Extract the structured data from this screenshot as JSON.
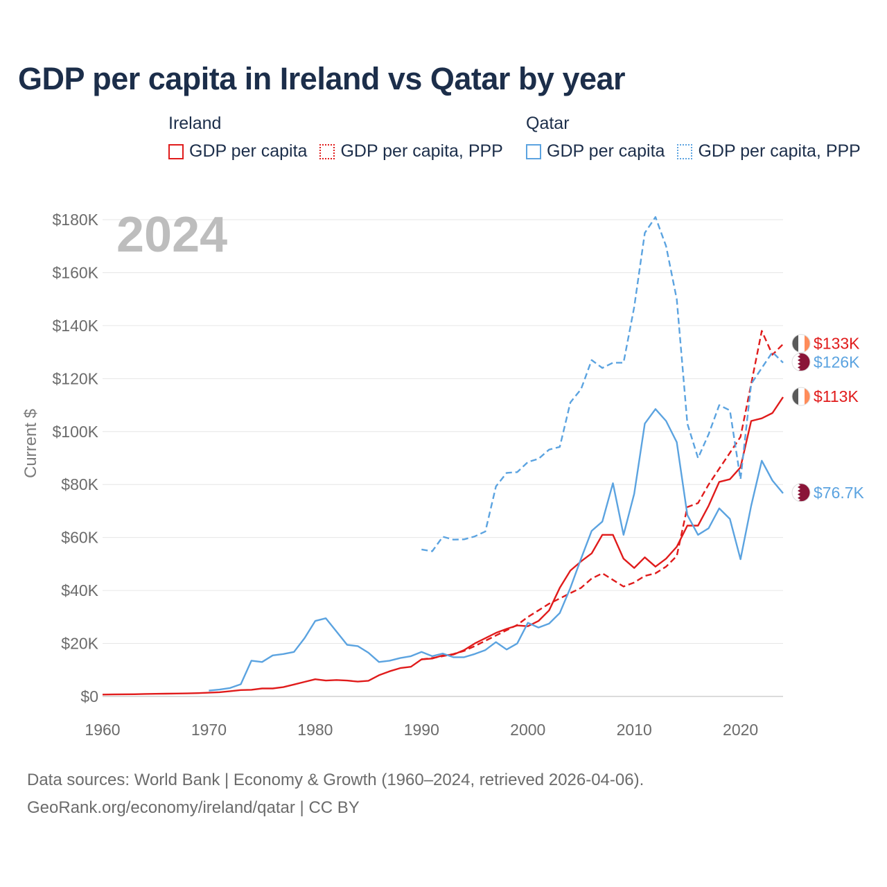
{
  "title": "GDP per capita in Ireland vs Qatar by year",
  "year_label": "2024",
  "legend": [
    {
      "group": "Ireland",
      "items": [
        {
          "label": "GDP per capita",
          "style": "solid",
          "color": "#e01b1b"
        },
        {
          "label": "GDP per capita, PPP",
          "style": "dotted",
          "color": "#e01b1b"
        }
      ]
    },
    {
      "group": "Qatar",
      "items": [
        {
          "label": "GDP per capita",
          "style": "solid",
          "color": "#5ba3e0"
        },
        {
          "label": "GDP per capita, PPP",
          "style": "dotted",
          "color": "#5ba3e0"
        }
      ]
    }
  ],
  "source_lines": [
    "Data sources: World Bank | Economy & Growth (1960–2024, retrieved 2026-04-06).",
    "GeoRank.org/economy/ireland/qatar | CC BY"
  ],
  "chart_data": {
    "type": "line",
    "ylabel": "Current $",
    "xlim": [
      1960,
      2024
    ],
    "ylim": [
      0,
      180000
    ],
    "xticks": [
      1960,
      1970,
      1980,
      1990,
      2000,
      2010,
      2020
    ],
    "yticks": [
      {
        "value": 0,
        "label": "$0"
      },
      {
        "value": 20000,
        "label": "$20K"
      },
      {
        "value": 40000,
        "label": "$40K"
      },
      {
        "value": 60000,
        "label": "$60K"
      },
      {
        "value": 80000,
        "label": "$80K"
      },
      {
        "value": 100000,
        "label": "$100K"
      },
      {
        "value": 120000,
        "label": "$120K"
      },
      {
        "value": 140000,
        "label": "$140K"
      },
      {
        "value": 160000,
        "label": "$160K"
      },
      {
        "value": 180000,
        "label": "$180K"
      }
    ],
    "series": [
      {
        "name": "Ireland GDP per capita",
        "country": "Ireland",
        "dash": "solid",
        "color": "#e01b1b",
        "end_label": "$113K",
        "x": [
          1960,
          1961,
          1962,
          1963,
          1964,
          1965,
          1966,
          1967,
          1968,
          1969,
          1970,
          1971,
          1972,
          1973,
          1974,
          1975,
          1976,
          1977,
          1978,
          1979,
          1980,
          1981,
          1982,
          1983,
          1984,
          1985,
          1986,
          1987,
          1988,
          1989,
          1990,
          1991,
          1992,
          1993,
          1994,
          1995,
          1996,
          1997,
          1998,
          1999,
          2000,
          2001,
          2002,
          2003,
          2004,
          2005,
          2006,
          2007,
          2008,
          2009,
          2010,
          2011,
          2012,
          2013,
          2014,
          2015,
          2016,
          2017,
          2018,
          2019,
          2020,
          2021,
          2022,
          2023,
          2024
        ],
        "values": [
          700,
          750,
          800,
          850,
          950,
          1000,
          1050,
          1100,
          1150,
          1250,
          1400,
          1600,
          2000,
          2400,
          2500,
          3000,
          3000,
          3500,
          4500,
          5500,
          6500,
          6000,
          6200,
          6000,
          5600,
          5900,
          8000,
          9500,
          10700,
          11200,
          14000,
          14300,
          15500,
          15800,
          17500,
          20000,
          22000,
          24000,
          25500,
          26800,
          26500,
          28500,
          32500,
          41000,
          47500,
          51000,
          54000,
          61000,
          61000,
          52000,
          48500,
          52500,
          49000,
          52000,
          56500,
          64500,
          64500,
          72000,
          81000,
          82000,
          86500,
          104000,
          105000,
          107000,
          113000
        ]
      },
      {
        "name": "Ireland GDP per capita, PPP",
        "country": "Ireland",
        "dash": "dashed",
        "color": "#e01b1b",
        "end_label": "$133K",
        "x": [
          1990,
          1991,
          1992,
          1993,
          1994,
          1995,
          1996,
          1997,
          1998,
          1999,
          2000,
          2001,
          2002,
          2003,
          2004,
          2005,
          2006,
          2007,
          2008,
          2009,
          2010,
          2011,
          2012,
          2013,
          2014,
          2015,
          2016,
          2017,
          2018,
          2019,
          2020,
          2021,
          2022,
          2023,
          2024
        ],
        "values": [
          14000,
          14500,
          15200,
          16000,
          17200,
          19000,
          21000,
          23000,
          25000,
          27000,
          30000,
          32500,
          35000,
          37000,
          39000,
          41000,
          44500,
          46500,
          44000,
          41500,
          43000,
          45500,
          46500,
          49000,
          53000,
          71500,
          73000,
          80000,
          86000,
          92000,
          98000,
          118000,
          138000,
          129000,
          133000
        ]
      },
      {
        "name": "Qatar GDP per capita",
        "country": "Qatar",
        "dash": "solid",
        "color": "#5ba3e0",
        "end_label": "$76.7K",
        "x": [
          1970,
          1971,
          1972,
          1973,
          1974,
          1975,
          1976,
          1977,
          1978,
          1979,
          1980,
          1981,
          1982,
          1983,
          1984,
          1985,
          1986,
          1987,
          1988,
          1989,
          1990,
          1991,
          1992,
          1993,
          1994,
          1995,
          1996,
          1997,
          1998,
          1999,
          2000,
          2001,
          2002,
          2003,
          2004,
          2005,
          2006,
          2007,
          2008,
          2009,
          2010,
          2011,
          2012,
          2013,
          2014,
          2015,
          2016,
          2017,
          2018,
          2019,
          2020,
          2021,
          2022,
          2023,
          2024
        ],
        "values": [
          2200,
          2600,
          3200,
          4600,
          13500,
          13000,
          15500,
          16000,
          16800,
          22000,
          28500,
          29500,
          24500,
          19500,
          19000,
          16500,
          13000,
          13500,
          14500,
          15200,
          16800,
          15200,
          16200,
          14800,
          14800,
          16000,
          17500,
          20500,
          17700,
          20000,
          27800,
          26000,
          27500,
          31500,
          41000,
          52000,
          62500,
          66000,
          80500,
          61000,
          76500,
          103000,
          108500,
          104000,
          96000,
          68500,
          61000,
          63500,
          71000,
          67000,
          51800,
          72000,
          89000,
          81500,
          76700
        ]
      },
      {
        "name": "Qatar GDP per capita, PPP",
        "country": "Qatar",
        "dash": "dashed",
        "color": "#5ba3e0",
        "end_label": "$126K",
        "x": [
          1990,
          1991,
          1992,
          1993,
          1994,
          1995,
          1996,
          1997,
          1998,
          1999,
          2000,
          2001,
          2002,
          2003,
          2004,
          2005,
          2006,
          2007,
          2008,
          2009,
          2010,
          2011,
          2012,
          2013,
          2014,
          2015,
          2016,
          2017,
          2018,
          2019,
          2020,
          2021,
          2022,
          2023,
          2024
        ],
        "values": [
          55500,
          54800,
          60300,
          59200,
          59300,
          60400,
          62300,
          79300,
          84400,
          84700,
          88500,
          89700,
          93200,
          94200,
          111000,
          116000,
          127000,
          124000,
          126000,
          126000,
          147000,
          175000,
          181000,
          170000,
          150000,
          103000,
          90000,
          99000,
          110000,
          108000,
          82000,
          118000,
          124000,
          130000,
          126000
        ]
      }
    ]
  }
}
